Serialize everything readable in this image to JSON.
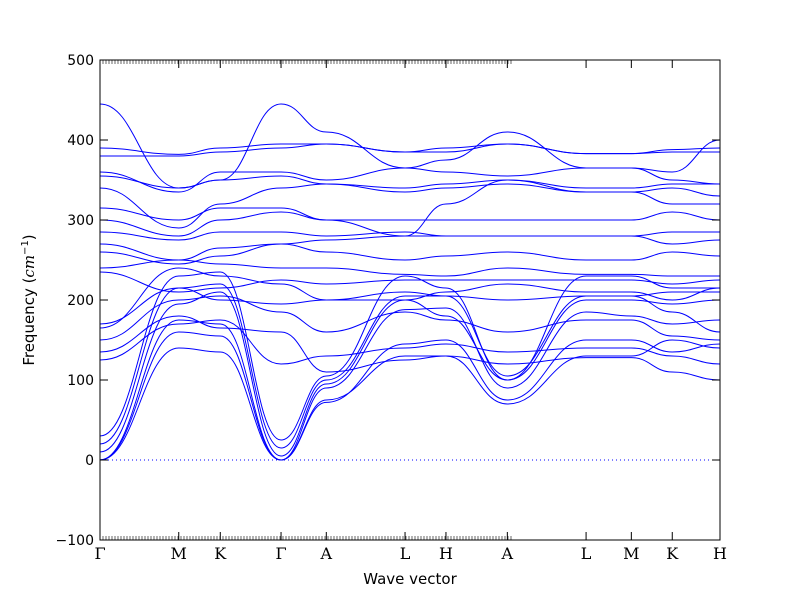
{
  "chart_data": {
    "type": "line",
    "title": "",
    "xlabel": "Wave vector",
    "ylabel": "Frequency (cm⁻¹)",
    "ylabel_main": "Frequency (",
    "ylabel_unit": "cm",
    "ylabel_exp": "−1",
    "ylabel_close": ")",
    "ylim": [
      -100,
      500
    ],
    "yticks": [
      -100,
      0,
      100,
      200,
      300,
      400,
      500
    ],
    "ytick_labels": [
      "−100",
      "0",
      "100",
      "200",
      "300",
      "400",
      "500"
    ],
    "xlim": [
      0,
      1
    ],
    "high_symmetry_points": [
      {
        "label": "Γ",
        "x": 0.0
      },
      {
        "label": "M",
        "x": 0.127
      },
      {
        "label": "K",
        "x": 0.194
      },
      {
        "label": "Γ",
        "x": 0.292
      },
      {
        "label": "A",
        "x": 0.365
      },
      {
        "label": "L",
        "x": 0.492
      },
      {
        "label": "H",
        "x": 0.558
      },
      {
        "label": "A",
        "x": 0.657
      },
      {
        "label": "L",
        "x": 0.784
      },
      {
        "label": "M",
        "x": 0.857
      },
      {
        "label": "K",
        "x": 0.923
      },
      {
        "label": "H",
        "x": 1.0
      }
    ],
    "zero_line": 0,
    "line_color": "#0000ff",
    "zero_line_color": "#0000ff",
    "series": [
      {
        "values": [
          0,
          160,
          155,
          0,
          75,
          130,
          130,
          70,
          130,
          130,
          150,
          140
        ]
      },
      {
        "values": [
          0,
          140,
          135,
          0,
          72,
          145,
          150,
          75,
          150,
          150,
          135,
          145
        ]
      },
      {
        "values": [
          0,
          175,
          170,
          0,
          90,
          188,
          190,
          90,
          185,
          180,
          170,
          175
        ]
      },
      {
        "values": [
          10,
          195,
          210,
          5,
          95,
          200,
          180,
          100,
          200,
          200,
          195,
          200
        ]
      },
      {
        "values": [
          20,
          215,
          220,
          15,
          100,
          205,
          205,
          105,
          205,
          205,
          210,
          210
        ]
      },
      {
        "values": [
          30,
          230,
          235,
          25,
          105,
          230,
          215,
          100,
          230,
          230,
          215,
          215
        ]
      },
      {
        "values": [
          125,
          170,
          175,
          120,
          130,
          140,
          145,
          135,
          140,
          140,
          130,
          120
        ]
      },
      {
        "values": [
          135,
          180,
          165,
          160,
          110,
          125,
          130,
          120,
          128,
          128,
          110,
          100
        ]
      },
      {
        "values": [
          150,
          200,
          205,
          185,
          160,
          185,
          175,
          160,
          175,
          175,
          155,
          150
        ]
      },
      {
        "values": [
          165,
          240,
          230,
          220,
          200,
          210,
          205,
          200,
          205,
          205,
          185,
          160
        ]
      },
      {
        "values": [
          170,
          215,
          200,
          195,
          200,
          200,
          210,
          220,
          210,
          210,
          200,
          215
        ]
      },
      {
        "values": [
          235,
          210,
          215,
          225,
          220,
          225,
          225,
          225,
          225,
          225,
          220,
          225
        ]
      },
      {
        "values": [
          240,
          250,
          245,
          240,
          240,
          232,
          230,
          240,
          232,
          232,
          230,
          230
        ]
      },
      {
        "values": [
          260,
          245,
          255,
          270,
          260,
          250,
          255,
          260,
          250,
          250,
          260,
          255
        ]
      },
      {
        "values": [
          270,
          250,
          265,
          270,
          275,
          280,
          280,
          280,
          280,
          280,
          270,
          275
        ]
      },
      {
        "values": [
          285,
          275,
          285,
          285,
          280,
          285,
          280,
          280,
          280,
          280,
          285,
          285
        ]
      },
      {
        "values": [
          300,
          280,
          300,
          310,
          300,
          300,
          300,
          300,
          300,
          300,
          310,
          300
        ]
      },
      {
        "values": [
          315,
          300,
          315,
          315,
          300,
          280,
          320,
          350,
          335,
          335,
          320,
          320
        ]
      },
      {
        "values": [
          340,
          290,
          320,
          340,
          345,
          335,
          340,
          345,
          335,
          335,
          340,
          330
        ]
      },
      {
        "values": [
          355,
          340,
          350,
          355,
          345,
          340,
          345,
          350,
          340,
          340,
          345,
          345
        ]
      },
      {
        "values": [
          360,
          335,
          360,
          360,
          350,
          365,
          360,
          355,
          365,
          365,
          350,
          345
        ]
      },
      {
        "values": [
          380,
          380,
          385,
          390,
          395,
          385,
          385,
          395,
          383,
          383,
          385,
          385
        ]
      },
      {
        "values": [
          390,
          382,
          390,
          395,
          395,
          385,
          390,
          395,
          383,
          383,
          388,
          390
        ]
      },
      {
        "values": [
          445,
          340,
          350,
          445,
          410,
          365,
          375,
          410,
          365,
          365,
          360,
          400
        ]
      }
    ]
  }
}
